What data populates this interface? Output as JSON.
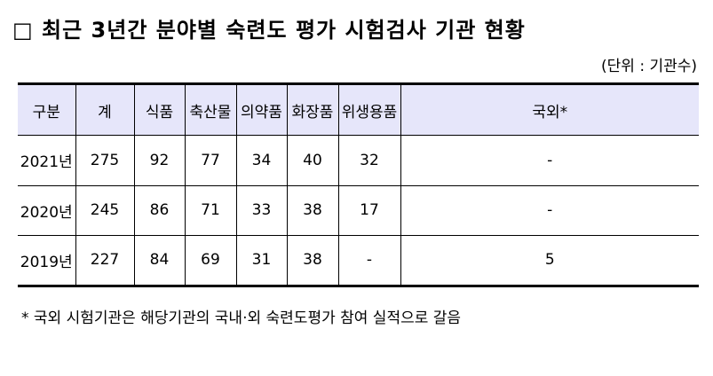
{
  "title": "□ 최근 3년간 분야별 숙련도 평가 시험검사 기관 현황",
  "unit": "(단위 : 기관수)",
  "table": {
    "headers": [
      "구분",
      "계",
      "식품",
      "축산물",
      "의약품",
      "화장품",
      "위생용품",
      "국외*"
    ],
    "rows": [
      [
        "2021년",
        "275",
        "92",
        "77",
        "34",
        "40",
        "32",
        "-"
      ],
      [
        "2020년",
        "245",
        "86",
        "71",
        "33",
        "38",
        "17",
        "-"
      ],
      [
        "2019년",
        "227",
        "84",
        "69",
        "31",
        "38",
        "-",
        "5"
      ]
    ]
  },
  "footnote": "* 국외 시험기관은 해당기관의 국내·외 숙련도평가 참여 실적으로 갈음",
  "colors": {
    "header_bg": "#e6e6fa"
  }
}
